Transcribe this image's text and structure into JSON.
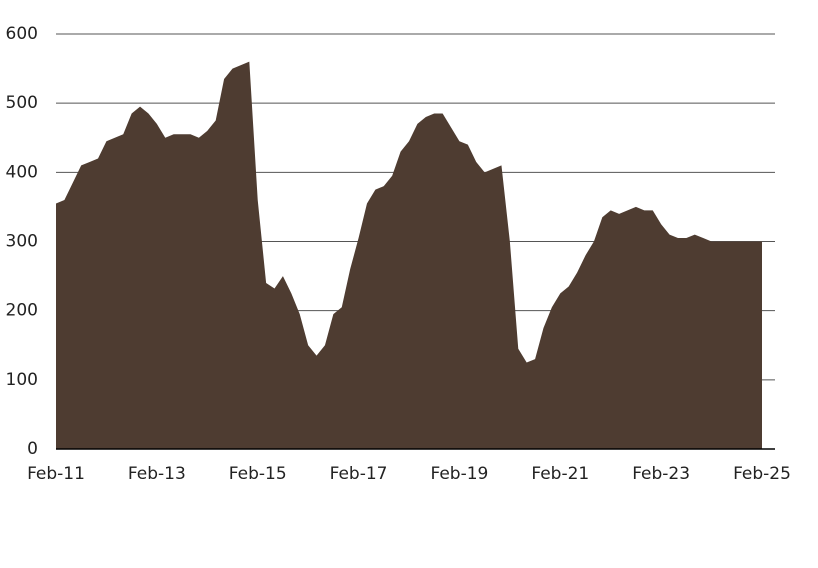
{
  "chart_data": {
    "type": "area",
    "categories": [
      "Feb-11",
      null,
      null,
      null,
      null,
      null,
      null,
      null,
      null,
      null,
      null,
      null,
      "Feb-13",
      null,
      null,
      null,
      null,
      null,
      null,
      null,
      null,
      null,
      null,
      null,
      "Feb-15",
      null,
      null,
      null,
      null,
      null,
      null,
      null,
      null,
      null,
      null,
      null,
      "Feb-17",
      null,
      null,
      null,
      null,
      null,
      null,
      null,
      null,
      null,
      null,
      null,
      "Feb-19",
      null,
      null,
      null,
      null,
      null,
      null,
      null,
      null,
      null,
      null,
      null,
      "Feb-21",
      null,
      null,
      null,
      null,
      null,
      null,
      null,
      null,
      null,
      null,
      null,
      "Feb-23",
      null,
      null,
      null,
      null,
      null,
      null,
      null,
      null,
      null,
      null,
      null,
      "Feb-25"
    ],
    "values": [
      355,
      360,
      385,
      410,
      415,
      420,
      445,
      450,
      455,
      485,
      495,
      485,
      470,
      450,
      455,
      455,
      455,
      450,
      460,
      475,
      535,
      550,
      555,
      560,
      360,
      240,
      232,
      250,
      225,
      195,
      150,
      135,
      150,
      195,
      205,
      260,
      305,
      355,
      375,
      380,
      395,
      430,
      445,
      470,
      480,
      485,
      485,
      465,
      445,
      440,
      415,
      400,
      405,
      410,
      300,
      145,
      125,
      130,
      175,
      205,
      225,
      235,
      255,
      280,
      300,
      335,
      345,
      340,
      345,
      350,
      345,
      345,
      325,
      310,
      305,
      305,
      310,
      305,
      300,
      300,
      300,
      300,
      300,
      300,
      300
    ],
    "color": "#4e3c31",
    "ylim": [
      0,
      600
    ],
    "yticks": [
      0,
      100,
      200,
      300,
      400,
      500,
      600
    ],
    "grid": true
  }
}
